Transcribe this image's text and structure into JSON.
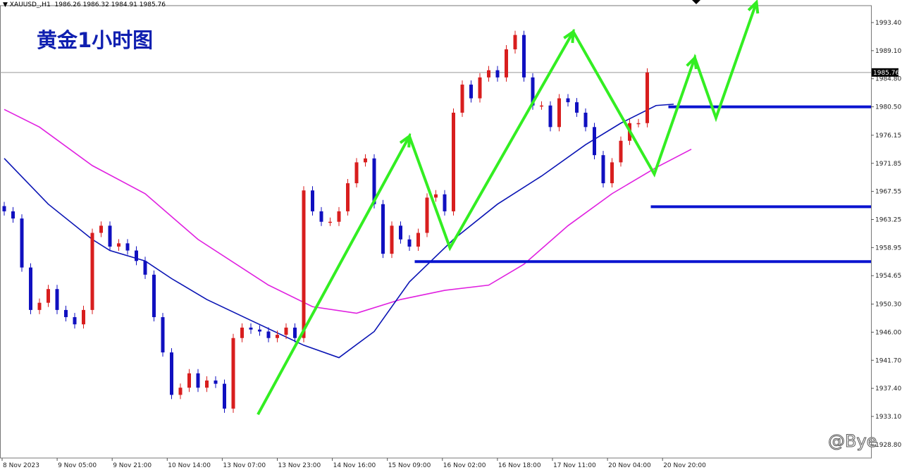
{
  "header": {
    "symbol": "XAUUSD_,H1",
    "ohlc": "1986.26 1986.32 1984.91 1985.76"
  },
  "title": "黄金1小时图",
  "watermark": "@Bye",
  "colors": {
    "bull": "#d81e1e",
    "bear": "#1010c0",
    "ma_fast": "#0a14b4",
    "ma_slow": "#e020e0",
    "levels": "#0a14d0",
    "arrow": "#33ee22"
  },
  "chart_data": {
    "type": "candlestick",
    "symbol": "XAUUSD",
    "timeframe": "H1",
    "ylim": [
      1928.8,
      1997.7
    ],
    "y_ticks": [
      "1993.40",
      "1989.10",
      "1984.80",
      "1980.50",
      "1976.15",
      "1971.85",
      "1967.55",
      "1963.25",
      "1958.95",
      "1954.65",
      "1950.30",
      "1946.00",
      "1941.70",
      "1937.40",
      "1933.10",
      "1928.80"
    ],
    "x_ticks": [
      "8 Nov 2023",
      "9 Nov 05:00",
      "9 Nov 21:00",
      "10 Nov 14:00",
      "13 Nov 07:00",
      "13 Nov 23:00",
      "14 Nov 16:00",
      "15 Nov 09:00",
      "16 Nov 02:00",
      "16 Nov 18:00",
      "17 Nov 11:00",
      "20 Nov 04:00",
      "20 Nov 20:00"
    ],
    "current_price": "1985.76",
    "closes": [
      1964.5,
      1963.4,
      1955.9,
      1949.4,
      1950.5,
      1952.6,
      1949.4,
      1948.3,
      1947.2,
      1949.4,
      1961.2,
      1962.3,
      1959.1,
      1959.6,
      1958.5,
      1956.9,
      1954.8,
      1948.3,
      1942.9,
      1936.4,
      1937.5,
      1939.7,
      1937.5,
      1938.6,
      1938.1,
      1934.3,
      1945.1,
      1946.7,
      1946.4,
      1946.1,
      1945.1,
      1945.6,
      1946.7,
      1945.1,
      1967.7,
      1964.5,
      1962.9,
      1962.9,
      1964.5,
      1968.8,
      1972.0,
      1972.6,
      1965.6,
      1958.0,
      1962.3,
      1960.2,
      1959.1,
      1961.2,
      1966.6,
      1967.1,
      1964.5,
      1979.6,
      1983.9,
      1981.8,
      1985.0,
      1986.1,
      1985.0,
      1989.3,
      1991.5,
      1985.0,
      1980.7,
      1980.7,
      1977.4,
      1981.8,
      1981.2,
      1979.6,
      1977.4,
      1973.1,
      1968.8,
      1972.0,
      1975.3,
      1978.0,
      1978.0,
      1985.76
    ],
    "series": [
      {
        "type": "line",
        "points": [
          [
            0,
            1972.6
          ],
          [
            5,
            1965.6
          ],
          [
            10,
            1960.2
          ],
          [
            12,
            1958.5
          ],
          [
            16,
            1956.9
          ],
          [
            19,
            1954.2
          ],
          [
            23,
            1951.0
          ],
          [
            28,
            1947.8
          ],
          [
            34,
            1944.0
          ],
          [
            38,
            1942.1
          ],
          [
            42,
            1946.1
          ],
          [
            46,
            1953.7
          ],
          [
            51,
            1960.2
          ],
          [
            56,
            1965.6
          ],
          [
            61,
            1969.9
          ],
          [
            66,
            1974.7
          ],
          [
            70,
            1978.0
          ],
          [
            74,
            1980.7
          ],
          [
            76,
            1980.9
          ]
        ]
      },
      {
        "type": "line",
        "points": [
          [
            0,
            1980.1
          ],
          [
            4,
            1977.4
          ],
          [
            10,
            1971.5
          ],
          [
            16,
            1967.2
          ],
          [
            22,
            1960.2
          ],
          [
            30,
            1953.2
          ],
          [
            35,
            1949.9
          ],
          [
            40,
            1948.9
          ],
          [
            45,
            1951.0
          ],
          [
            50,
            1952.4
          ],
          [
            55,
            1953.2
          ],
          [
            59,
            1956.4
          ],
          [
            64,
            1962.3
          ],
          [
            69,
            1967.2
          ],
          [
            74,
            1971.2
          ],
          [
            78,
            1974.0
          ]
        ]
      }
    ],
    "levels": [
      {
        "price": 1980.5,
        "from_index": 75.4
      },
      {
        "price": 1965.2,
        "from_index": 73.4
      },
      {
        "price": 1956.8,
        "from_index": 46.6
      }
    ],
    "arrow_path": [
      [
        28.8,
        1933.4
      ],
      [
        46,
        1976.0
      ],
      [
        50.6,
        1958.9
      ],
      [
        64.6,
        1992.0
      ],
      [
        73.8,
        1970.2
      ],
      [
        78.4,
        1988.0
      ],
      [
        80.8,
        1978.8
      ],
      [
        85.4,
        1996.5
      ]
    ]
  }
}
